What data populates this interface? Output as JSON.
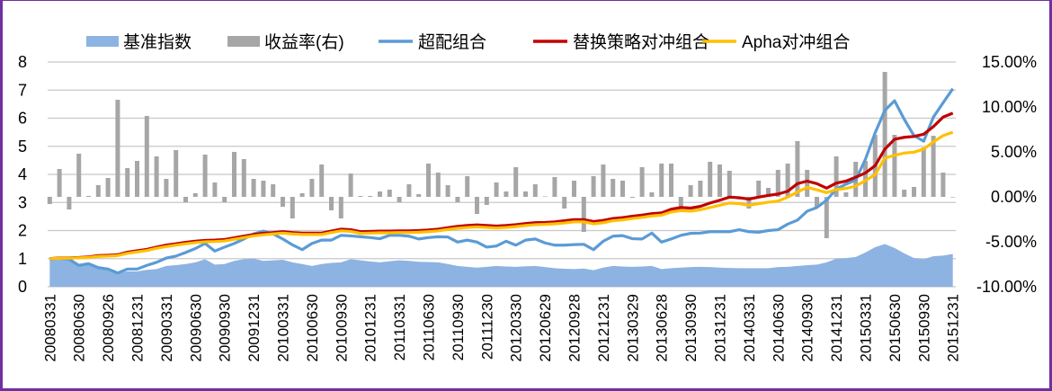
{
  "chart_data": {
    "type": "bar+area+line",
    "title": "",
    "legend_position": "top",
    "grid": true,
    "x": [
      "20080331",
      "",
      "",
      "20080630",
      "",
      "",
      "20080926",
      "",
      "",
      "20081231",
      "",
      "",
      "20090331",
      "",
      "",
      "20090630",
      "",
      "",
      "20090930",
      "",
      "",
      "20091231",
      "",
      "",
      "20100331",
      "",
      "",
      "20100630",
      "",
      "",
      "20100930",
      "",
      "",
      "20101231",
      "",
      "",
      "20110331",
      "",
      "",
      "20110630",
      "",
      "",
      "20110930",
      "",
      "",
      "20111230",
      "",
      "",
      "20120330",
      "",
      "",
      "20120629",
      "",
      "",
      "20120928",
      "",
      "",
      "20121231",
      "",
      "",
      "20130329",
      "",
      "",
      "20130628",
      "",
      "",
      "20130930",
      "",
      "",
      "20131231",
      "",
      "",
      "20140331",
      "",
      "",
      "20140630",
      "",
      "",
      "20140930",
      "",
      "",
      "20141231",
      "",
      "",
      "20150331",
      "",
      "",
      "20150630",
      "",
      "",
      "20150930",
      "",
      "",
      "20151231"
    ],
    "x_tick_labels": [
      "20080331",
      "20080630",
      "20080926",
      "20081231",
      "20090331",
      "20090630",
      "20090930",
      "20091231",
      "20100331",
      "20100630",
      "20100930",
      "20101231",
      "20110331",
      "20110630",
      "20110930",
      "20111230",
      "20120330",
      "20120629",
      "20120928",
      "20121231",
      "20130329",
      "20130628",
      "20130930",
      "20131231",
      "20140331",
      "20140630",
      "20140930",
      "20141231",
      "20150331",
      "20150630",
      "20150930",
      "20151231"
    ],
    "y_left": {
      "range": [
        0,
        8
      ],
      "ticks": [
        "0",
        "1",
        "2",
        "3",
        "4",
        "5",
        "6",
        "7",
        "8"
      ]
    },
    "y_right": {
      "range": [
        -10,
        15
      ],
      "ticks": [
        "-10.00%",
        "-5.00%",
        "0.00%",
        "5.00%",
        "10.00%",
        "15.00%"
      ]
    },
    "series": [
      {
        "name": "基准指数",
        "kind": "area",
        "axis": "left",
        "color": "#8DB3E2",
        "values": [
          1.0,
          1.02,
          0.98,
          0.79,
          0.81,
          0.68,
          0.66,
          0.49,
          0.55,
          0.55,
          0.6,
          0.63,
          0.74,
          0.77,
          0.81,
          0.87,
          0.98,
          0.79,
          0.81,
          0.92,
          0.98,
          1.0,
          0.92,
          0.94,
          0.96,
          0.87,
          0.81,
          0.74,
          0.81,
          0.85,
          0.87,
          0.98,
          0.94,
          0.9,
          0.87,
          0.91,
          0.94,
          0.92,
          0.89,
          0.88,
          0.87,
          0.81,
          0.74,
          0.71,
          0.68,
          0.71,
          0.74,
          0.72,
          0.71,
          0.73,
          0.74,
          0.7,
          0.66,
          0.64,
          0.63,
          0.65,
          0.59,
          0.68,
          0.74,
          0.72,
          0.71,
          0.72,
          0.74,
          0.63,
          0.66,
          0.68,
          0.7,
          0.71,
          0.7,
          0.68,
          0.67,
          0.66,
          0.66,
          0.66,
          0.66,
          0.7,
          0.71,
          0.74,
          0.77,
          0.79,
          0.87,
          1.0,
          1.02,
          1.06,
          1.22,
          1.41,
          1.52,
          1.38,
          1.19,
          1.02,
          0.98,
          1.09,
          1.11,
          1.17
        ]
      },
      {
        "name": "收益率(右)",
        "kind": "bar",
        "axis": "right",
        "color": "#A6A6A6",
        "values": [
          -0.8,
          3.1,
          -1.4,
          4.8,
          0.1,
          1.3,
          2.1,
          10.8,
          3.2,
          4.0,
          9.0,
          4.5,
          2.0,
          5.2,
          -0.6,
          0.4,
          4.7,
          1.6,
          -0.6,
          5.0,
          4.2,
          2.0,
          1.8,
          1.4,
          -1.1,
          -2.4,
          0.4,
          2.0,
          3.6,
          -1.5,
          -2.4,
          2.6,
          0.1,
          0.1,
          0.6,
          0.8,
          -0.6,
          1.4,
          0.3,
          3.7,
          2.7,
          1.3,
          -0.6,
          2.3,
          -1.9,
          -0.9,
          1.6,
          0.6,
          3.3,
          0.6,
          1.4,
          0.05,
          2.2,
          -1.3,
          1.8,
          -3.9,
          2.3,
          3.6,
          2.0,
          1.8,
          -0.1,
          3.3,
          0.5,
          3.7,
          3.7,
          -1.2,
          1.3,
          1.8,
          3.9,
          3.6,
          2.9,
          -0.3,
          -1.3,
          1.8,
          1.0,
          3.0,
          3.7,
          6.2,
          3.0,
          -1.2,
          -4.6,
          4.5,
          0.5,
          3.9,
          4.0,
          6.9,
          13.9,
          6.9,
          0.8,
          1.1,
          5.5,
          6.8,
          2.7,
          0
        ]
      },
      {
        "name": "超配组合",
        "kind": "line",
        "axis": "left",
        "color": "#5B9BD5",
        "values": [
          1.0,
          1.02,
          0.98,
          0.76,
          0.82,
          0.68,
          0.63,
          0.49,
          0.63,
          0.63,
          0.76,
          0.87,
          1.02,
          1.09,
          1.22,
          1.36,
          1.54,
          1.27,
          1.41,
          1.54,
          1.7,
          1.88,
          1.98,
          1.88,
          1.7,
          1.49,
          1.32,
          1.54,
          1.66,
          1.66,
          1.83,
          1.81,
          1.78,
          1.75,
          1.71,
          1.83,
          1.83,
          1.8,
          1.7,
          1.75,
          1.78,
          1.77,
          1.59,
          1.66,
          1.59,
          1.41,
          1.45,
          1.62,
          1.48,
          1.66,
          1.7,
          1.56,
          1.48,
          1.48,
          1.5,
          1.51,
          1.32,
          1.62,
          1.8,
          1.82,
          1.71,
          1.7,
          1.91,
          1.59,
          1.7,
          1.83,
          1.9,
          1.91,
          1.96,
          1.96,
          1.96,
          2.03,
          1.96,
          1.94,
          2.0,
          2.03,
          2.23,
          2.37,
          2.69,
          2.82,
          3.08,
          3.48,
          3.65,
          3.8,
          4.54,
          5.48,
          6.28,
          6.62,
          5.96,
          5.38,
          5.18,
          6.04,
          6.55,
          7.05
        ]
      },
      {
        "name": "替换策略对冲组合",
        "kind": "line",
        "axis": "left",
        "color": "#C00000",
        "values": [
          1.0,
          1.02,
          1.03,
          1.04,
          1.06,
          1.11,
          1.12,
          1.14,
          1.23,
          1.28,
          1.33,
          1.41,
          1.48,
          1.53,
          1.58,
          1.62,
          1.65,
          1.66,
          1.68,
          1.74,
          1.8,
          1.86,
          1.9,
          1.93,
          1.96,
          1.93,
          1.91,
          1.91,
          1.91,
          1.98,
          2.05,
          2.03,
          1.96,
          1.97,
          1.98,
          1.98,
          1.99,
          1.99,
          2.0,
          2.02,
          2.05,
          2.1,
          2.15,
          2.18,
          2.2,
          2.18,
          2.16,
          2.18,
          2.21,
          2.25,
          2.28,
          2.29,
          2.31,
          2.35,
          2.39,
          2.39,
          2.32,
          2.36,
          2.43,
          2.46,
          2.51,
          2.55,
          2.6,
          2.63,
          2.76,
          2.82,
          2.8,
          2.86,
          2.98,
          3.08,
          3.19,
          3.17,
          3.12,
          3.19,
          3.25,
          3.3,
          3.4,
          3.67,
          3.76,
          3.67,
          3.51,
          3.69,
          3.76,
          3.9,
          4.05,
          4.31,
          4.9,
          5.25,
          5.32,
          5.35,
          5.43,
          5.7,
          6.04,
          6.18
        ]
      },
      {
        "name": "Apha对冲组合",
        "kind": "line",
        "axis": "left",
        "color": "#FFC000",
        "values": [
          1.0,
          1.01,
          1.02,
          1.03,
          1.04,
          1.08,
          1.09,
          1.11,
          1.19,
          1.24,
          1.29,
          1.37,
          1.43,
          1.48,
          1.53,
          1.57,
          1.6,
          1.61,
          1.63,
          1.69,
          1.75,
          1.81,
          1.85,
          1.88,
          1.91,
          1.88,
          1.86,
          1.86,
          1.86,
          1.93,
          1.99,
          1.97,
          1.9,
          1.91,
          1.92,
          1.92,
          1.93,
          1.93,
          1.94,
          1.96,
          1.99,
          2.04,
          2.08,
          2.11,
          2.13,
          2.11,
          2.09,
          2.11,
          2.14,
          2.18,
          2.21,
          2.22,
          2.24,
          2.27,
          2.31,
          2.31,
          2.24,
          2.28,
          2.35,
          2.38,
          2.43,
          2.47,
          2.52,
          2.55,
          2.66,
          2.71,
          2.69,
          2.74,
          2.82,
          2.9,
          2.98,
          2.96,
          2.9,
          2.96,
          3.01,
          3.05,
          3.19,
          3.37,
          3.54,
          3.45,
          3.35,
          3.46,
          3.5,
          3.58,
          3.78,
          3.99,
          4.58,
          4.68,
          4.76,
          4.79,
          4.9,
          5.16,
          5.38,
          5.5
        ]
      }
    ]
  },
  "frame_color": "#7030A0"
}
